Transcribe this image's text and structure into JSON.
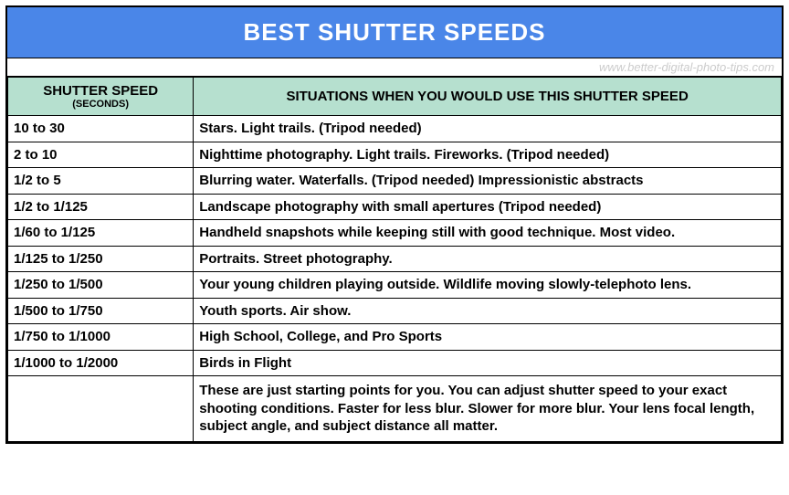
{
  "title": "BEST SHUTTER SPEEDS",
  "watermark": "www.better-digital-photo-tips.com",
  "colors": {
    "title_bg": "#4a86e8",
    "title_text": "#ffffff",
    "header_bg": "#b6e0cf",
    "border": "#000000",
    "watermark_text": "#cccccc"
  },
  "header": {
    "col1_main": "SHUTTER SPEED",
    "col1_sub": "(SECONDS)",
    "col2": "SITUATIONS WHEN YOU WOULD USE THIS SHUTTER SPEED"
  },
  "rows": [
    {
      "speed": "10 to 30",
      "situation": "Stars. Light trails. (Tripod needed)"
    },
    {
      "speed": "2 to 10",
      "situation": "Nighttime photography. Light trails. Fireworks. (Tripod needed)"
    },
    {
      "speed": "1/2 to 5",
      "situation": "Blurring water. Waterfalls.  (Tripod needed) Impressionistic abstracts"
    },
    {
      "speed": "1/2 to 1/125",
      "situation": "Landscape photography with small apertures (Tripod needed)"
    },
    {
      "speed": "1/60 to 1/125",
      "situation": "Handheld snapshots while keeping still with good technique. Most video."
    },
    {
      "speed": "1/125 to 1/250",
      "situation": "Portraits. Street photography."
    },
    {
      "speed": "1/250 to 1/500",
      "situation": "Your young children playing outside. Wildlife moving slowly-telephoto lens."
    },
    {
      "speed": "1/500 to 1/750",
      "situation": "Youth sports. Air show."
    },
    {
      "speed": "1/750  to 1/1000",
      "situation": "High School, College, and Pro Sports"
    },
    {
      "speed": "1/1000 to 1/2000",
      "situation": "Birds in Flight"
    }
  ],
  "footer": {
    "speed": "",
    "note": "These are just starting points for you. You can adjust shutter speed to your exact shooting conditions. Faster for less blur. Slower for more blur. Your lens focal length, subject angle, and subject distance all matter."
  }
}
